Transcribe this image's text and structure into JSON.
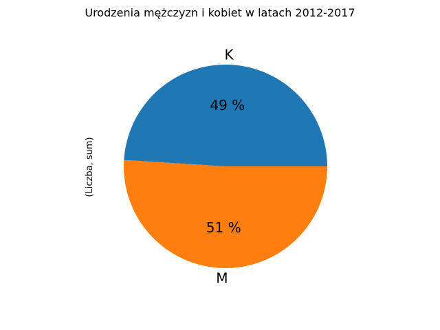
{
  "chart_data": {
    "type": "pie",
    "title": "Urodzenia mężczyzn i kobiet w latach 2012-2017",
    "ylabel": "(Liczba, sum)",
    "categories": [
      "K",
      "M"
    ],
    "values": [
      49,
      51
    ],
    "percent_labels": [
      "49 %",
      "51 %"
    ],
    "colors": [
      "#1f77b4",
      "#ff7f0e"
    ],
    "start_angle_deg": 0,
    "direction": "counterclockwise",
    "legend": "none",
    "grid": false
  }
}
